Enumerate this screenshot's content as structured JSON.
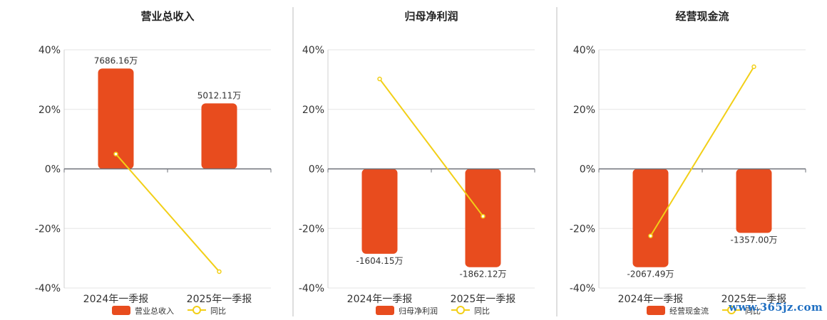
{
  "chart_data": [
    {
      "type": "bar",
      "title": "营业总收入",
      "categories": [
        "2024年一季报",
        "2025年一季报"
      ],
      "y_ticks": [
        "40%",
        "20%",
        "0%",
        "-20%",
        "-40%"
      ],
      "ylim": [
        -40,
        40
      ],
      "grid": true,
      "legend_position": "bottom",
      "series": [
        {
          "name": "营业总收入",
          "kind": "bar",
          "values": [
            33.7,
            22.0
          ],
          "labels": [
            "7686.16万",
            "5012.11万"
          ],
          "color": "#e84c1e"
        },
        {
          "name": "同比",
          "kind": "line",
          "values": [
            5.0,
            -34.5
          ],
          "color": "#f2cf17"
        }
      ]
    },
    {
      "type": "bar",
      "title": "归母净利润",
      "categories": [
        "2024年一季报",
        "2025年一季报"
      ],
      "y_ticks": [
        "40%",
        "20%",
        "0%",
        "-20%",
        "-40%"
      ],
      "ylim": [
        -40,
        40
      ],
      "grid": true,
      "legend_position": "bottom",
      "series": [
        {
          "name": "归母净利润",
          "kind": "bar",
          "values": [
            -28.5,
            -33.0
          ],
          "labels": [
            "-1604.15万",
            "-1862.12万"
          ],
          "color": "#e84c1e"
        },
        {
          "name": "同比",
          "kind": "line",
          "values": [
            30.2,
            -15.9
          ],
          "color": "#f2cf17"
        }
      ]
    },
    {
      "type": "bar",
      "title": "经营现金流",
      "categories": [
        "2024年一季报",
        "2025年一季报"
      ],
      "y_ticks": [
        "40%",
        "20%",
        "0%",
        "-20%",
        "-40%"
      ],
      "ylim": [
        -40,
        40
      ],
      "grid": true,
      "legend_position": "bottom",
      "series": [
        {
          "name": "经营现金流",
          "kind": "bar",
          "values": [
            -33.0,
            -21.5
          ],
          "labels": [
            "-2067.49万",
            "-1357.00万"
          ],
          "color": "#e84c1e"
        },
        {
          "name": "同比",
          "kind": "line",
          "values": [
            -22.5,
            34.3
          ],
          "color": "#f2cf17"
        }
      ]
    }
  ],
  "watermark": "www.365jz.com"
}
